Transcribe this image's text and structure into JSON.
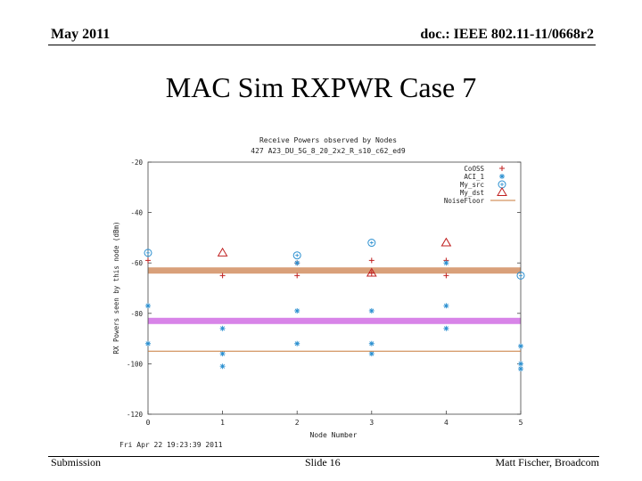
{
  "header": {
    "date": "May 2011",
    "doc": "doc.: IEEE 802.11-11/0668r2"
  },
  "slide": {
    "title": "MAC Sim RXPWR Case 7"
  },
  "footer": {
    "left": "Submission",
    "center": "Slide 16",
    "right": "Matt Fischer, Broadcom"
  },
  "chart_data": {
    "type": "scatter",
    "title": "Receive Powers observed by Nodes",
    "subtitle": "427 A23_DU_5G_8_20_2x2_R_s10_c62_ed9",
    "xlabel": "Node Number",
    "ylabel": "RX Powers seen by this node (dBm)",
    "xlim": [
      0,
      5
    ],
    "ylim": [
      -120,
      -20
    ],
    "xticks": [
      "0",
      "1",
      "2",
      "3",
      "4",
      "5"
    ],
    "yticks": [
      "-20",
      "-40",
      "-60",
      "-80",
      "-100",
      "-120"
    ],
    "timestamp": "Fri Apr 22 19:23:39 2011",
    "legend_position": "top-right",
    "bands": [
      {
        "y": -63,
        "color": "#d9a07a"
      },
      {
        "y": -83,
        "color": "#d884e8"
      }
    ],
    "series": [
      {
        "name": "CoOSS",
        "marker": "plus",
        "color": "#c02020",
        "points": [
          [
            0,
            -59
          ],
          [
            1,
            -65
          ],
          [
            2,
            -60
          ],
          [
            2,
            -65
          ],
          [
            3,
            -59
          ],
          [
            3,
            -64
          ],
          [
            4,
            -59
          ],
          [
            4,
            -65
          ]
        ]
      },
      {
        "name": "ACI_1",
        "marker": "star",
        "color": "#2a8fd0",
        "points": [
          [
            0,
            -77
          ],
          [
            0,
            -92
          ],
          [
            1,
            -86
          ],
          [
            1,
            -96
          ],
          [
            1,
            -101
          ],
          [
            2,
            -60
          ],
          [
            2,
            -79
          ],
          [
            2,
            -92
          ],
          [
            3,
            -79
          ],
          [
            3,
            -92
          ],
          [
            3,
            -96
          ],
          [
            4,
            -60
          ],
          [
            4,
            -77
          ],
          [
            4,
            -86
          ],
          [
            5,
            -93
          ],
          [
            5,
            -100
          ],
          [
            5,
            -102
          ]
        ]
      },
      {
        "name": "My_src",
        "marker": "circle",
        "color": "#2a8fd0",
        "points": [
          [
            0,
            -56
          ],
          [
            2,
            -57
          ],
          [
            3,
            -52
          ],
          [
            5,
            -65
          ]
        ]
      },
      {
        "name": "My_dst",
        "marker": "triangle",
        "color": "#c02020",
        "points": [
          [
            1,
            -56
          ],
          [
            3,
            -64
          ],
          [
            4,
            -52
          ]
        ]
      },
      {
        "name": "NoiseFloor",
        "marker": "line",
        "color": "#c87a3a",
        "y": -95
      }
    ]
  }
}
